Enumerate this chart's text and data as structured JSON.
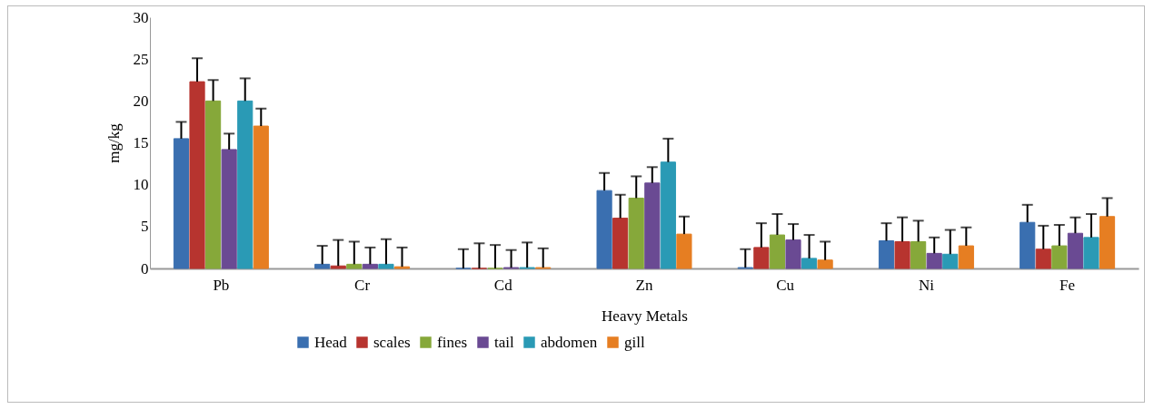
{
  "chart_data": {
    "type": "bar",
    "xlabel": "Heavy Metals",
    "ylabel": "mg/kg",
    "categories": [
      "Pb",
      "Cr",
      "Cd",
      "Zn",
      "Cu",
      "Ni",
      "Fe"
    ],
    "ylim": [
      0,
      30
    ],
    "yticks": [
      0,
      5,
      10,
      15,
      20,
      25,
      30
    ],
    "grid": false,
    "legend": "bottom",
    "series": [
      {
        "name": "Head",
        "color": "#3a6fb0",
        "values": [
          15.5,
          0.5,
          0,
          9.3,
          0.1,
          3.3,
          5.5
        ],
        "errors": [
          [
            15.5,
            17.5
          ],
          [
            0.5,
            2.7
          ],
          [
            0,
            2.3
          ],
          [
            9.3,
            11.4
          ],
          [
            0.1,
            2.3
          ],
          [
            3.3,
            5.4
          ],
          [
            5.5,
            7.6
          ]
        ]
      },
      {
        "name": "scales",
        "color": "#b7342f",
        "values": [
          22.3,
          0.3,
          0,
          6.0,
          2.5,
          3.2,
          2.3
        ],
        "errors": [
          [
            22.3,
            25.1
          ],
          [
            0.3,
            3.4
          ],
          [
            0,
            3.0
          ],
          [
            6.0,
            8.8
          ],
          [
            2.5,
            5.4
          ],
          [
            3.2,
            6.1
          ],
          [
            2.3,
            5.1
          ]
        ]
      },
      {
        "name": "fines",
        "color": "#86a83a",
        "values": [
          20.0,
          0.5,
          0,
          8.4,
          4.0,
          3.2,
          2.7
        ],
        "errors": [
          [
            20.0,
            22.5
          ],
          [
            0.5,
            3.2
          ],
          [
            0,
            2.8
          ],
          [
            8.4,
            11.0
          ],
          [
            4.0,
            6.5
          ],
          [
            3.2,
            5.7
          ],
          [
            2.7,
            5.2
          ]
        ]
      },
      {
        "name": "tail",
        "color": "#6a4a93",
        "values": [
          14.2,
          0.5,
          0.1,
          10.2,
          3.4,
          1.8,
          4.2
        ],
        "errors": [
          [
            14.2,
            16.1
          ],
          [
            0.5,
            2.5
          ],
          [
            0.1,
            2.2
          ],
          [
            10.2,
            12.1
          ],
          [
            3.4,
            5.3
          ],
          [
            1.8,
            3.7
          ],
          [
            4.2,
            6.1
          ]
        ]
      },
      {
        "name": "abdomen",
        "color": "#2a9ab5",
        "values": [
          20.0,
          0.5,
          0.1,
          12.7,
          1.2,
          1.7,
          3.7
        ],
        "errors": [
          [
            20.0,
            22.7
          ],
          [
            0.5,
            3.5
          ],
          [
            0.1,
            3.1
          ],
          [
            12.7,
            15.5
          ],
          [
            1.2,
            4.0
          ],
          [
            1.7,
            4.6
          ],
          [
            3.7,
            6.5
          ]
        ]
      },
      {
        "name": "gill",
        "color": "#e67e22",
        "values": [
          17.0,
          0.2,
          0.1,
          4.1,
          1.0,
          2.7,
          6.2
        ],
        "errors": [
          [
            17.0,
            19.1
          ],
          [
            0.2,
            2.5
          ],
          [
            0.1,
            2.4
          ],
          [
            4.1,
            6.2
          ],
          [
            1.0,
            3.2
          ],
          [
            2.7,
            4.9
          ],
          [
            6.2,
            8.4
          ]
        ]
      }
    ]
  }
}
